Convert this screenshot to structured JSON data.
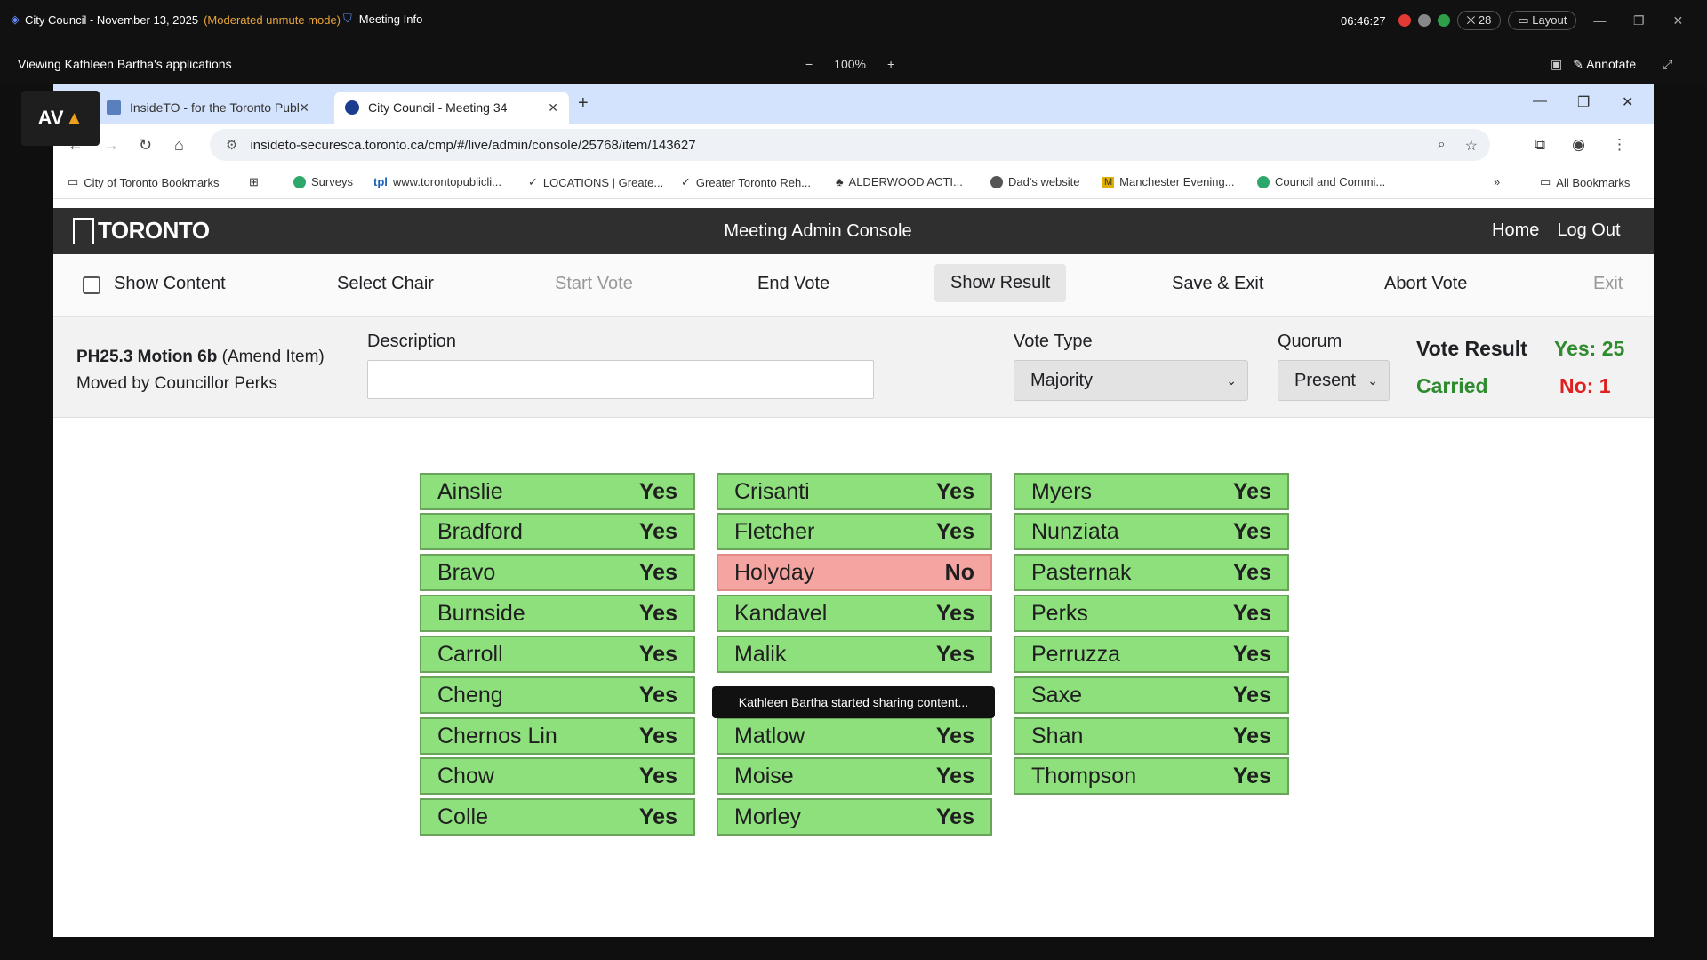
{
  "teams": {
    "meeting_title": "City Council - November 13, 2025",
    "mode": "(Moderated unmute mode)",
    "meeting_info": "Meeting Info",
    "clock": "06:46:27",
    "participants": "28",
    "layout": "Layout",
    "viewing": "Viewing Kathleen Bartha's applications",
    "zoom": "100%",
    "annotate": "Annotate"
  },
  "av_logo": "AV",
  "browser": {
    "tabs": [
      {
        "label": "InsideTO - for the Toronto Publ"
      },
      {
        "label": "City Council - Meeting 34"
      }
    ],
    "url": "insideto-securesca.toronto.ca/cmp/#/live/admin/console/25768/item/143627",
    "bookmarks": [
      "City of Toronto Bookmarks",
      "Surveys",
      "www.torontopublicli...",
      "LOCATIONS | Greate...",
      "Greater Toronto Reh...",
      "ALDERWOOD ACTI...",
      "Dad's website",
      "Manchester Evening...",
      "Council and Commi...",
      "All Bookmarks"
    ]
  },
  "site": {
    "logo": "TORONTO",
    "title": "Meeting Admin Console",
    "nav": [
      "Home",
      "Log Out"
    ]
  },
  "actions": {
    "show_content": "Show Content",
    "select_chair": "Select Chair",
    "start_vote": "Start Vote",
    "end_vote": "End Vote",
    "show_result": "Show Result",
    "save_exit": "Save & Exit",
    "abort_vote": "Abort Vote",
    "exit": "Exit"
  },
  "info": {
    "motion_id": "PH25.3 Motion 6b",
    "motion_type": "(Amend Item)",
    "moved_by": "Moved by Councillor Perks",
    "description_label": "Description",
    "description_value": "",
    "vote_type_label": "Vote Type",
    "vote_type_value": "Majority",
    "quorum_label": "Quorum",
    "quorum_value": "Present",
    "vote_result_label": "Vote Result",
    "vote_result_value": "Carried",
    "yes_count": "Yes: 25",
    "no_count": "No: 1"
  },
  "votes": {
    "col1": [
      {
        "name": "Ainslie",
        "vote": "Yes"
      },
      {
        "name": "Bradford",
        "vote": "Yes"
      },
      {
        "name": "Bravo",
        "vote": "Yes"
      },
      {
        "name": "Burnside",
        "vote": "Yes"
      },
      {
        "name": "Carroll",
        "vote": "Yes"
      },
      {
        "name": "Cheng",
        "vote": "Yes"
      },
      {
        "name": "Chernos Lin",
        "vote": "Yes"
      },
      {
        "name": "Chow",
        "vote": "Yes"
      },
      {
        "name": "Colle",
        "vote": "Yes"
      }
    ],
    "col2": [
      {
        "name": "Crisanti",
        "vote": "Yes"
      },
      {
        "name": "Fletcher",
        "vote": "Yes"
      },
      {
        "name": "Holyday",
        "vote": "No"
      },
      {
        "name": "Kandavel",
        "vote": "Yes"
      },
      {
        "name": "Malik",
        "vote": "Yes"
      },
      {
        "name": "",
        "vote": ""
      },
      {
        "name": "Matlow",
        "vote": "Yes"
      },
      {
        "name": "Moise",
        "vote": "Yes"
      },
      {
        "name": "Morley",
        "vote": "Yes"
      }
    ],
    "col3": [
      {
        "name": "Myers",
        "vote": "Yes"
      },
      {
        "name": "Nunziata",
        "vote": "Yes"
      },
      {
        "name": "Pasternak",
        "vote": "Yes"
      },
      {
        "name": "Perks",
        "vote": "Yes"
      },
      {
        "name": "Perruzza",
        "vote": "Yes"
      },
      {
        "name": "Saxe",
        "vote": "Yes"
      },
      {
        "name": "Shan",
        "vote": "Yes"
      },
      {
        "name": "Thompson",
        "vote": "Yes"
      }
    ]
  },
  "toast": "Kathleen Bartha started sharing content...",
  "colors": {
    "yes_bg": "#8ee07d",
    "no_bg": "#f5a5a1",
    "carried": "#2e8b2e",
    "no_text": "#e02020"
  }
}
